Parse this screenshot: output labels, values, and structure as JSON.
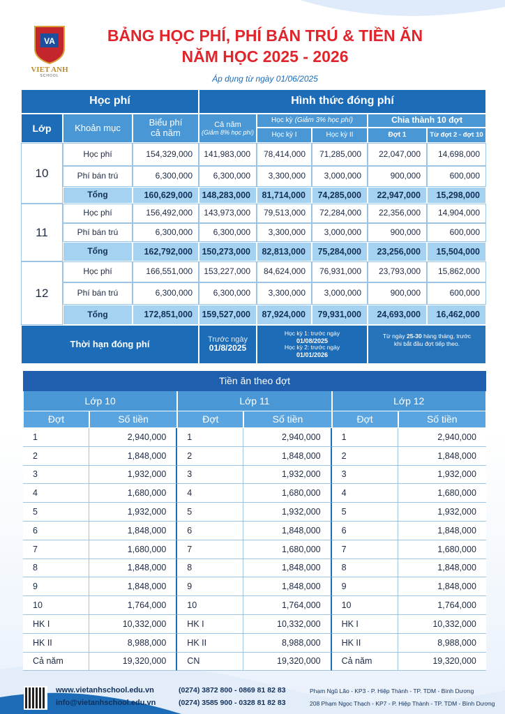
{
  "header": {
    "logo_name": "VIET ANH",
    "logo_sub": "SCHOOL",
    "title_line1": "BẢNG HỌC PHÍ, PHÍ BÁN TRÚ & TIỀN ĂN",
    "title_line2": "NĂM HỌC 2025 - 2026",
    "subtitle": "Áp dụng từ ngày 01/06/2025"
  },
  "fee_table": {
    "group_left": "Học phí",
    "group_right": "Hình thức đóng phí",
    "columns": {
      "grade": "Lớp",
      "item": "Khoản mục",
      "annual_fee": [
        "Biểu phí",
        "cả năm"
      ],
      "full_year": "Cả năm",
      "full_year_note": "(Giảm 8% học phí)",
      "semester": "Học kỳ",
      "semester_note": "(Giảm 3% học phí)",
      "semester_1": "Học kỳ I",
      "semester_2": "Học kỳ II",
      "installments": "Chia thành 10 đợt",
      "installment_1": "Đợt 1",
      "installment_rest": "Từ đợt 2 - đợt 10"
    },
    "grades": [
      {
        "grade": "10",
        "rows": [
          {
            "item": "Học phí",
            "values": [
              "154,329,000",
              "141,983,000",
              "78,414,000",
              "71,285,000",
              "22,047,000",
              "14,698,000"
            ]
          },
          {
            "item": "Phí bán trú",
            "values": [
              "6,300,000",
              "6,300,000",
              "3,300,000",
              "3,000,000",
              "900,000",
              "600,000"
            ]
          },
          {
            "item": "Tổng",
            "values": [
              "160,629,000",
              "148,283,000",
              "81,714,000",
              "74,285,000",
              "22,947,000",
              "15,298,000"
            ]
          }
        ]
      },
      {
        "grade": "11",
        "rows": [
          {
            "item": "Học phí",
            "values": [
              "156,492,000",
              "143,973,000",
              "79,513,000",
              "72,284,000",
              "22,356,000",
              "14,904,000"
            ]
          },
          {
            "item": "Phí bán trú",
            "values": [
              "6,300,000",
              "6,300,000",
              "3,300,000",
              "3,000,000",
              "900,000",
              "600,000"
            ]
          },
          {
            "item": "Tổng",
            "values": [
              "162,792,000",
              "150,273,000",
              "82,813,000",
              "75,284,000",
              "23,256,000",
              "15,504,000"
            ]
          }
        ]
      },
      {
        "grade": "12",
        "rows": [
          {
            "item": "Học phí",
            "values": [
              "166,551,000",
              "153,227,000",
              "84,624,000",
              "76,931,000",
              "23,793,000",
              "15,862,000"
            ]
          },
          {
            "item": "Phí bán trú",
            "values": [
              "6,300,000",
              "6,300,000",
              "3,300,000",
              "3,000,000",
              "900,000",
              "600,000"
            ]
          },
          {
            "item": "Tổng",
            "values": [
              "172,851,000",
              "159,527,000",
              "87,924,000",
              "79,931,000",
              "24,693,000",
              "16,462,000"
            ]
          }
        ]
      }
    ],
    "deadline": {
      "label": "Thời hạn đóng phí",
      "full_year": [
        "Trước ngày",
        "01/8/2025"
      ],
      "semester": [
        "Học kỳ 1: trước ngày",
        "01/08/2025",
        "Học kỳ 2: trước ngày",
        "01/01/2026"
      ],
      "installments": [
        "Từ ngày",
        "25-30",
        "hàng tháng,",
        "trước khi bắt đầu",
        "đợt tiếp theo."
      ]
    }
  },
  "meal_table": {
    "title": "Tiền ăn theo đợt",
    "groups": [
      {
        "name": "Lớp 10",
        "col_period": "Đợt",
        "col_amount": "Số tiền",
        "rows": [
          [
            "1",
            "2,940,000"
          ],
          [
            "2",
            "1,848,000"
          ],
          [
            "3",
            "1,932,000"
          ],
          [
            "4",
            "1,680,000"
          ],
          [
            "5",
            "1,932,000"
          ],
          [
            "6",
            "1,848,000"
          ],
          [
            "7",
            "1,680,000"
          ],
          [
            "8",
            "1,848,000"
          ],
          [
            "9",
            "1,848,000"
          ],
          [
            "10",
            "1,764,000"
          ],
          [
            "HK I",
            "10,332,000"
          ],
          [
            "HK II",
            "8,988,000"
          ],
          [
            "Cả năm",
            "19,320,000"
          ]
        ]
      },
      {
        "name": "Lớp 11",
        "col_period": "Đợt",
        "col_amount": "Số tiền",
        "rows": [
          [
            "1",
            "2,940,000"
          ],
          [
            "2",
            "1,848,000"
          ],
          [
            "3",
            "1,932,000"
          ],
          [
            "4",
            "1,680,000"
          ],
          [
            "5",
            "1,932,000"
          ],
          [
            "6",
            "1,848,000"
          ],
          [
            "7",
            "1,680,000"
          ],
          [
            "8",
            "1,848,000"
          ],
          [
            "9",
            "1,848,000"
          ],
          [
            "10",
            "1,764,000"
          ],
          [
            "HK I",
            "10,332,000"
          ],
          [
            "HK II",
            "8,988,000"
          ],
          [
            "CN",
            "19,320,000"
          ]
        ]
      },
      {
        "name": "Lớp 12",
        "col_period": "Đợt",
        "col_amount": "Số tiền",
        "rows": [
          [
            "1",
            "2,940,000"
          ],
          [
            "2",
            "1,848,000"
          ],
          [
            "3",
            "1,932,000"
          ],
          [
            "4",
            "1,680,000"
          ],
          [
            "5",
            "1,932,000"
          ],
          [
            "6",
            "1,848,000"
          ],
          [
            "7",
            "1,680,000"
          ],
          [
            "8",
            "1,848,000"
          ],
          [
            "9",
            "1,848,000"
          ],
          [
            "10",
            "1,764,000"
          ],
          [
            "HK I",
            "10,332,000"
          ],
          [
            "HK II",
            "8,988,000"
          ],
          [
            "Cả năm",
            "19,320,000"
          ]
        ]
      }
    ]
  },
  "footer": {
    "website": "www.vietanhschool.edu.vn",
    "email": "info@vietanhschool.edu.vn",
    "phone_1": "(0274) 3872 800 - 0869 81 82 83",
    "phone_2": "(0274) 3585 900 - 0328 81 82 83",
    "address_1": "Phạm Ngũ Lão - KP3 - P. Hiệp Thành - TP. TDM - Bình Dương",
    "address_2": "208 Phạm Ngọc Thạch - KP7 - P. Hiệp Thành - TP. TDM - Bình Dương"
  }
}
